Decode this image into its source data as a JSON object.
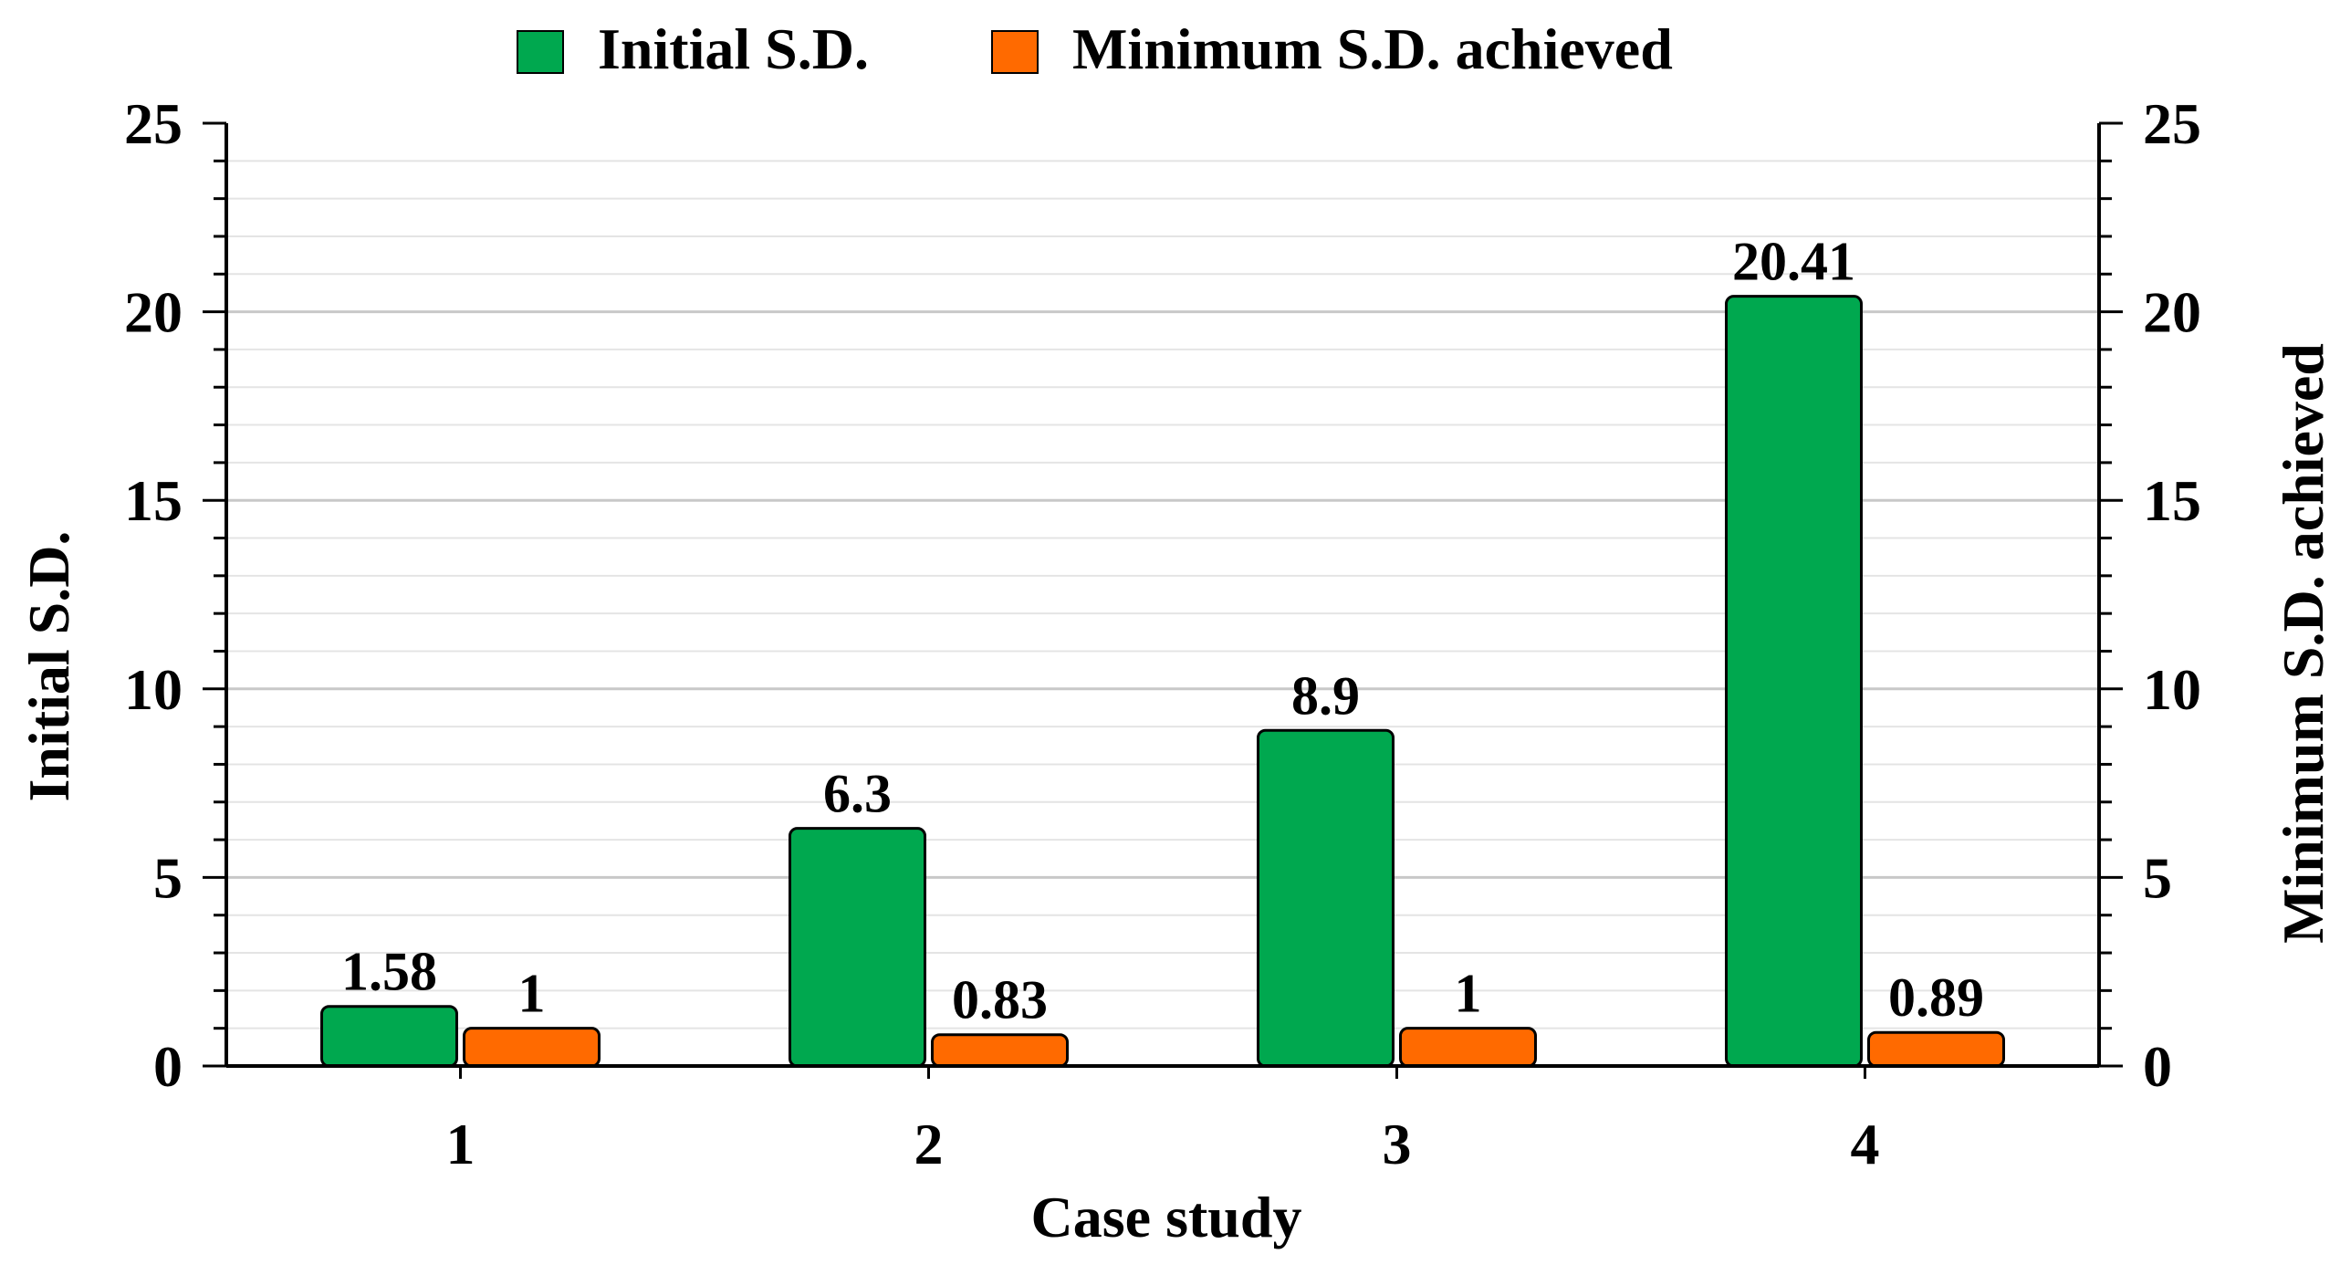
{
  "chart_data": {
    "type": "bar",
    "title": "",
    "categories": [
      "1",
      "2",
      "3",
      "4"
    ],
    "series": [
      {
        "name": "Initial S.D.",
        "axis": "left",
        "color": "#00A84F",
        "values": [
          1.58,
          6.3,
          8.9,
          20.41
        ],
        "labels": [
          "1.58",
          "6.3",
          "8.9",
          "20.41"
        ]
      },
      {
        "name": "Minimum S.D. achieved",
        "axis": "right",
        "color": "#FF6A00",
        "values": [
          1,
          0.83,
          1,
          0.89
        ],
        "labels": [
          "1",
          "0.83",
          "1",
          "0.89"
        ]
      }
    ],
    "xlabel": "Case study",
    "ylabel_left": "Initial S.D.",
    "ylabel_right": "Minimum S.D. achieved",
    "ylim": [
      0,
      25
    ],
    "ylim_right": [
      0,
      25
    ],
    "yticks": [
      0,
      5,
      10,
      15,
      20,
      25
    ],
    "grid": true,
    "legend_position": "top-center"
  }
}
